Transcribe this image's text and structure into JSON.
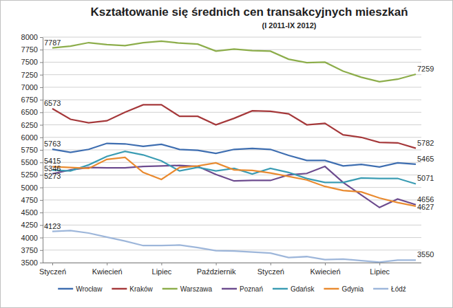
{
  "chart_data": {
    "type": "line",
    "title": "Kształtowanie się średnich cen transakcyjnych mieszkań",
    "subtitle": "(I 2011-IX 2012)",
    "categories": [
      "Styczeń",
      null,
      null,
      "Kwiecień",
      null,
      null,
      "Lipiec",
      null,
      null,
      "Październik",
      null,
      null,
      "Styczeń",
      null,
      null,
      "Kwiecień",
      null,
      null,
      "Lipiec",
      null,
      null
    ],
    "series": [
      {
        "name": "Wrocław",
        "color": "#3d6db0",
        "values": [
          5763,
          5700,
          5760,
          5880,
          5870,
          5820,
          5860,
          5760,
          5740,
          5680,
          5760,
          5780,
          5760,
          5640,
          5540,
          5540,
          5430,
          5460,
          5410,
          5490,
          5465
        ],
        "value_labels": [
          "5763",
          null,
          null,
          null,
          null,
          null,
          null,
          null,
          null,
          null,
          null,
          null,
          null,
          null,
          null,
          null,
          null,
          null,
          null,
          null,
          "5465"
        ]
      },
      {
        "name": "Kraków",
        "color": "#a5383a",
        "values": [
          6573,
          6360,
          6290,
          6330,
          6500,
          6650,
          6650,
          6420,
          6420,
          6250,
          6380,
          6530,
          6520,
          6470,
          6250,
          6280,
          6050,
          6000,
          5900,
          5890,
          5782
        ],
        "value_labels": [
          "6573",
          null,
          null,
          null,
          null,
          null,
          null,
          null,
          null,
          null,
          null,
          null,
          null,
          null,
          null,
          null,
          null,
          null,
          null,
          null,
          "5782"
        ]
      },
      {
        "name": "Warszawa",
        "color": "#8cad4a",
        "values": [
          7787,
          7820,
          7890,
          7850,
          7830,
          7890,
          7920,
          7880,
          7860,
          7720,
          7760,
          7730,
          7720,
          7560,
          7490,
          7500,
          7320,
          7200,
          7110,
          7160,
          7259
        ],
        "value_labels": [
          "7787",
          null,
          null,
          null,
          null,
          null,
          null,
          null,
          null,
          null,
          null,
          null,
          null,
          null,
          null,
          null,
          null,
          null,
          null,
          null,
          "7259"
        ]
      },
      {
        "name": "Poznań",
        "color": "#6c4b8e",
        "values": [
          5273,
          5350,
          5400,
          5390,
          5390,
          5420,
          5430,
          5440,
          5420,
          5260,
          5130,
          5140,
          5140,
          5250,
          5280,
          5420,
          5100,
          4850,
          4600,
          4770,
          4656
        ],
        "value_labels": [
          "5273",
          null,
          null,
          null,
          null,
          null,
          null,
          null,
          null,
          null,
          null,
          null,
          null,
          null,
          null,
          null,
          null,
          null,
          null,
          null,
          "4656"
        ]
      },
      {
        "name": "Gdańsk",
        "color": "#3a9cb3",
        "values": [
          5346,
          5330,
          5450,
          5620,
          5720,
          5650,
          5530,
          5330,
          5400,
          5330,
          5380,
          5270,
          5380,
          5300,
          5180,
          5100,
          5100,
          5190,
          5180,
          5180,
          5071
        ],
        "value_labels": [
          "5346",
          null,
          null,
          null,
          null,
          null,
          null,
          null,
          null,
          null,
          null,
          null,
          null,
          null,
          null,
          null,
          null,
          null,
          null,
          null,
          "5071"
        ]
      },
      {
        "name": "Gdynia",
        "color": "#e98a2f",
        "values": [
          5415,
          5400,
          5380,
          5560,
          5600,
          5300,
          5160,
          5400,
          5430,
          5490,
          5350,
          5340,
          5290,
          5220,
          5150,
          5020,
          4940,
          4910,
          4790,
          4700,
          4627
        ],
        "value_labels": [
          "5415",
          null,
          null,
          null,
          null,
          null,
          null,
          null,
          null,
          null,
          null,
          null,
          null,
          null,
          null,
          null,
          null,
          null,
          null,
          null,
          "4627"
        ]
      },
      {
        "name": "Łódź",
        "color": "#9db6da",
        "values": [
          4123,
          4140,
          4090,
          4010,
          3930,
          3840,
          3840,
          3850,
          3800,
          3740,
          3730,
          3710,
          3690,
          3600,
          3620,
          3560,
          3570,
          3540,
          3510,
          3550,
          3550
        ],
        "value_labels": [
          "4123",
          null,
          null,
          null,
          null,
          null,
          null,
          null,
          null,
          null,
          null,
          null,
          null,
          null,
          null,
          null,
          null,
          null,
          null,
          null,
          "3550"
        ]
      }
    ],
    "ylim": [
      3500,
      8000
    ],
    "yticks": [
      3500,
      3750,
      4000,
      4250,
      4500,
      4750,
      5000,
      5250,
      5500,
      5750,
      6000,
      6250,
      6500,
      6750,
      7000,
      7250,
      7500,
      7750,
      8000
    ],
    "grid": true,
    "legend": "bottom"
  }
}
